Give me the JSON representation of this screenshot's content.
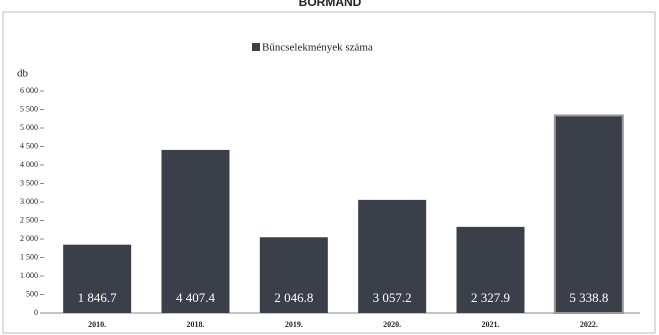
{
  "chart_data": {
    "type": "bar",
    "title": "BORMAND",
    "legend": "Bűncselekmények száma",
    "y_label": "db",
    "categories": [
      "2010.",
      "2018.",
      "2019.",
      "2020.",
      "2021.",
      "2022."
    ],
    "values": [
      1846.7,
      4407.4,
      2046.8,
      3057.2,
      2327.9,
      5338.8
    ],
    "value_labels": [
      "1 846.7",
      "4 407.4",
      "2 046.8",
      "3 057.2",
      "2 327.9",
      "5 338.8"
    ],
    "color": "#3b3f4a",
    "ylim": [
      0,
      6000
    ],
    "yticks": [
      0,
      500,
      {
        "value": 1000,
        "label": "1 000"
      },
      {
        "value": 1500,
        "label": "1 500"
      },
      {
        "value": 2000,
        "label": "2 000"
      },
      {
        "value": 2500,
        "label": "2 500"
      },
      {
        "value": 3000,
        "label": "3 000"
      },
      {
        "value": 3500,
        "label": "3 500"
      },
      {
        "value": 4000,
        "label": "4 000"
      },
      {
        "value": 4500,
        "label": "4 500"
      },
      {
        "value": 5000,
        "label": "5 000"
      },
      {
        "value": 5500,
        "label": "5 500"
      },
      {
        "value": 6000,
        "label": "6 000"
      }
    ]
  }
}
